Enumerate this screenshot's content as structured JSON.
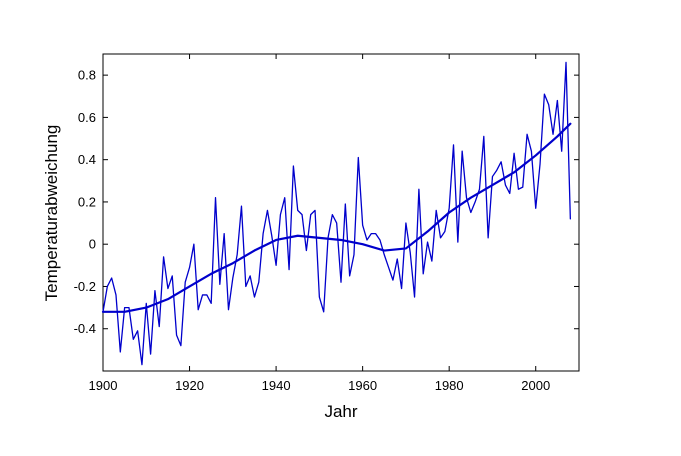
{
  "chart_data": {
    "type": "line",
    "title": "",
    "xlabel": "Jahr",
    "ylabel": "Temperaturabweichung",
    "xlim": [
      1900,
      2010
    ],
    "ylim": [
      -0.6,
      0.9
    ],
    "xticks": [
      1900,
      1920,
      1940,
      1960,
      1980,
      2000
    ],
    "yticks": [
      -0.4,
      -0.2,
      0,
      0.2,
      0.4,
      0.6,
      0.8
    ],
    "xtick_labels": [
      "1900",
      "1920",
      "1940",
      "1960",
      "1980",
      "2000"
    ],
    "ytick_labels": [
      "-0.4",
      "-0.2",
      "0",
      "0.2",
      "0.4",
      "0.6",
      "0.8"
    ],
    "grid": false,
    "series": [
      {
        "color": "#0000cc",
        "x": [
          1900,
          1901,
          1902,
          1903,
          1904,
          1905,
          1906,
          1907,
          1908,
          1909,
          1910,
          1911,
          1912,
          1913,
          1914,
          1915,
          1916,
          1917,
          1918,
          1919,
          1920,
          1921,
          1922,
          1923,
          1924,
          1925,
          1926,
          1927,
          1928,
          1929,
          1930,
          1931,
          1932,
          1933,
          1934,
          1935,
          1936,
          1937,
          1938,
          1939,
          1940,
          1941,
          1942,
          1943,
          1944,
          1945,
          1946,
          1947,
          1948,
          1949,
          1950,
          1951,
          1952,
          1953,
          1954,
          1955,
          1956,
          1957,
          1958,
          1959,
          1960,
          1961,
          1962,
          1963,
          1964,
          1965,
          1966,
          1967,
          1968,
          1969,
          1970,
          1971,
          1972,
          1973,
          1974,
          1975,
          1976,
          1977,
          1978,
          1979,
          1980,
          1981,
          1982,
          1983,
          1984,
          1985,
          1986,
          1987,
          1988,
          1989,
          1990,
          1991,
          1992,
          1993,
          1994,
          1995,
          1996,
          1997,
          1998,
          1999,
          2000,
          2001,
          2002,
          2003,
          2004,
          2005,
          2006,
          2007,
          2008
        ],
        "y": [
          -0.32,
          -0.2,
          -0.16,
          -0.24,
          -0.51,
          -0.3,
          -0.3,
          -0.45,
          -0.41,
          -0.57,
          -0.28,
          -0.52,
          -0.22,
          -0.39,
          -0.06,
          -0.21,
          -0.15,
          -0.43,
          -0.48,
          -0.18,
          -0.11,
          0.0,
          -0.31,
          -0.24,
          -0.24,
          -0.28,
          0.22,
          -0.19,
          0.05,
          -0.31,
          -0.16,
          -0.05,
          0.18,
          -0.2,
          -0.15,
          -0.25,
          -0.18,
          0.05,
          0.16,
          0.04,
          -0.1,
          0.14,
          0.22,
          -0.12,
          0.37,
          0.16,
          0.14,
          -0.03,
          0.14,
          0.16,
          -0.25,
          -0.32,
          0.03,
          0.14,
          0.1,
          -0.18,
          0.19,
          -0.15,
          -0.05,
          0.41,
          0.09,
          0.02,
          0.05,
          0.05,
          0.02,
          -0.05,
          -0.11,
          -0.17,
          -0.07,
          -0.21,
          0.1,
          -0.04,
          -0.25,
          0.26,
          -0.14,
          0.01,
          -0.08,
          0.16,
          0.03,
          0.06,
          0.17,
          0.47,
          0.01,
          0.44,
          0.22,
          0.15,
          0.2,
          0.26,
          0.51,
          0.03,
          0.32,
          0.35,
          0.39,
          0.28,
          0.24,
          0.43,
          0.26,
          0.27,
          0.52,
          0.44,
          0.17,
          0.38,
          0.71,
          0.66,
          0.52,
          0.68,
          0.44,
          0.86,
          0.12
        ]
      },
      {
        "color": "#0000cc",
        "x": [
          1900,
          1905,
          1910,
          1915,
          1920,
          1925,
          1930,
          1935,
          1940,
          1945,
          1950,
          1955,
          1960,
          1965,
          1970,
          1975,
          1980,
          1985,
          1990,
          1995,
          2000,
          2005,
          2008
        ],
        "y": [
          -0.32,
          -0.32,
          -0.3,
          -0.26,
          -0.2,
          -0.14,
          -0.09,
          -0.03,
          0.02,
          0.04,
          0.03,
          0.02,
          0.0,
          -0.03,
          -0.02,
          0.06,
          0.15,
          0.22,
          0.28,
          0.34,
          0.42,
          0.51,
          0.57
        ]
      }
    ]
  }
}
